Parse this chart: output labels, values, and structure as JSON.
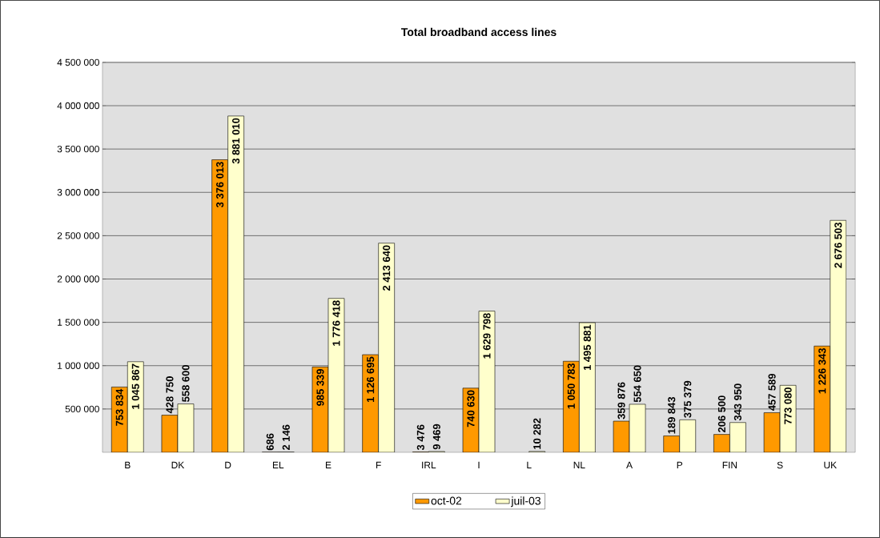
{
  "chart_data": {
    "type": "bar",
    "title": "Total broadband access lines",
    "categories": [
      "B",
      "DK",
      "D",
      "EL",
      "E",
      "F",
      "IRL",
      "I",
      "L",
      "NL",
      "A",
      "P",
      "FIN",
      "S",
      "UK"
    ],
    "series": [
      {
        "name": "oct-02",
        "color": "#ff9900",
        "values": [
          753834,
          428750,
          3376013,
          686,
          985339,
          1126695,
          3476,
          740630,
          null,
          1050783,
          359876,
          189843,
          206500,
          457589,
          1226343
        ],
        "value_labels": [
          "753 834",
          "428 750",
          "3 376 013",
          "686",
          "985 339",
          "1 126 695",
          "3 476",
          "740 630",
          null,
          "1 050 783",
          "359 876",
          "189 843",
          "206 500",
          "457 589",
          "1 226 343"
        ]
      },
      {
        "name": "juil-03",
        "color": "#ffffcc",
        "values": [
          1045867,
          558600,
          3881010,
          2146,
          1776418,
          2413640,
          9469,
          1629798,
          10282,
          1495881,
          554650,
          375379,
          343950,
          773080,
          2676503
        ],
        "value_labels": [
          "1 045 867",
          "558 600",
          "3 881 010",
          "2 146",
          "1 776 418",
          "2 413 640",
          "9 469",
          "1 629 798",
          "10 282",
          "1 495 881",
          "554 650",
          "375 379",
          "343 950",
          "773 080",
          "2 676 503"
        ]
      }
    ],
    "ylim": [
      0,
      4500000
    ],
    "yticks": [
      {
        "value": 500000,
        "label": "500 000"
      },
      {
        "value": 1000000,
        "label": "1 000 000"
      },
      {
        "value": 1500000,
        "label": "1 500 000"
      },
      {
        "value": 2000000,
        "label": "2 000 000"
      },
      {
        "value": 2500000,
        "label": "2 500 000"
      },
      {
        "value": 3000000,
        "label": "3 000 000"
      },
      {
        "value": 3500000,
        "label": "3 500 000"
      },
      {
        "value": 4000000,
        "label": "4 000 000"
      },
      {
        "value": 4500000,
        "label": "4 500 000"
      }
    ],
    "grid": "y",
    "legend": "bottom"
  }
}
